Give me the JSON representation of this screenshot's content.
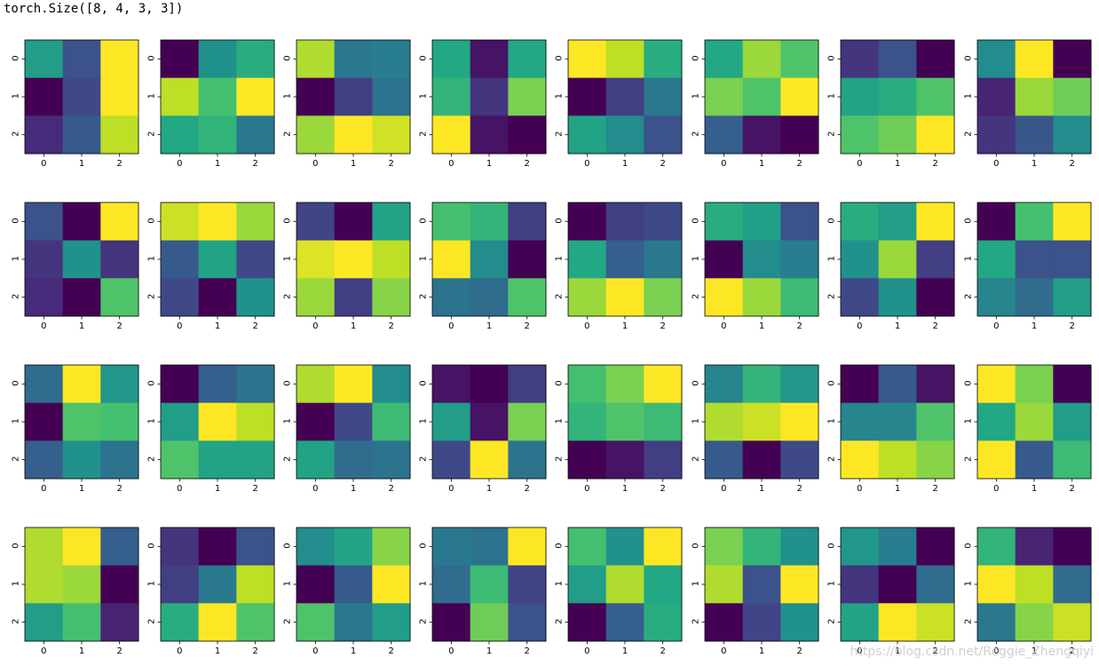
{
  "output_text": "torch.Size([8, 4, 3, 3])",
  "watermark": "https://blog.csdn.net/Reggie_Zhengqiyi",
  "chart_data": {
    "type": "heatmap",
    "colormap": "viridis",
    "grid_rows": 4,
    "grid_cols": 8,
    "value_range": [
      0,
      1
    ],
    "tick_labels": [
      "0",
      "1",
      "2"
    ],
    "panels": [
      [
        [
          0.55,
          0.25,
          1.0
        ],
        [
          0.0,
          0.22,
          1.0
        ],
        [
          0.12,
          0.28,
          0.9
        ]
      ],
      [
        [
          0.0,
          0.5,
          0.62
        ],
        [
          0.9,
          0.7,
          1.0
        ],
        [
          0.6,
          0.65,
          0.4
        ]
      ],
      [
        [
          0.88,
          0.4,
          0.42
        ],
        [
          0.0,
          0.18,
          0.38
        ],
        [
          0.85,
          1.0,
          0.93
        ]
      ],
      [
        [
          0.6,
          0.05,
          0.6
        ],
        [
          0.65,
          0.15,
          0.8
        ],
        [
          1.0,
          0.05,
          0.0
        ]
      ],
      [
        [
          1.0,
          0.9,
          0.62
        ],
        [
          0.0,
          0.18,
          0.4
        ],
        [
          0.58,
          0.48,
          0.25
        ]
      ],
      [
        [
          0.6,
          0.85,
          0.72
        ],
        [
          0.8,
          0.72,
          1.0
        ],
        [
          0.3,
          0.05,
          0.0
        ]
      ],
      [
        [
          0.15,
          0.25,
          0.0
        ],
        [
          0.58,
          0.62,
          0.72
        ],
        [
          0.72,
          0.78,
          1.0
        ]
      ],
      [
        [
          0.48,
          1.0,
          0.0
        ],
        [
          0.1,
          0.85,
          0.78
        ],
        [
          0.15,
          0.27,
          0.48
        ]
      ],
      [
        [
          0.25,
          0.0,
          1.0
        ],
        [
          0.15,
          0.5,
          0.15
        ],
        [
          0.12,
          0.0,
          0.72
        ]
      ],
      [
        [
          0.92,
          1.0,
          0.85
        ],
        [
          0.28,
          0.58,
          0.22
        ],
        [
          0.22,
          0.0,
          0.5
        ]
      ],
      [
        [
          0.2,
          0.0,
          0.58
        ],
        [
          0.95,
          1.0,
          0.9
        ],
        [
          0.85,
          0.18,
          0.82
        ]
      ],
      [
        [
          0.7,
          0.65,
          0.18
        ],
        [
          1.0,
          0.48,
          0.0
        ],
        [
          0.38,
          0.35,
          0.72
        ]
      ],
      [
        [
          0.0,
          0.18,
          0.22
        ],
        [
          0.6,
          0.3,
          0.4
        ],
        [
          0.85,
          1.0,
          0.8
        ]
      ],
      [
        [
          0.62,
          0.56,
          0.25
        ],
        [
          0.0,
          0.48,
          0.42
        ],
        [
          1.0,
          0.85,
          0.68
        ]
      ],
      [
        [
          0.62,
          0.55,
          1.0
        ],
        [
          0.5,
          0.85,
          0.18
        ],
        [
          0.22,
          0.5,
          0.0
        ]
      ],
      [
        [
          0.0,
          0.7,
          1.0
        ],
        [
          0.6,
          0.25,
          0.25
        ],
        [
          0.45,
          0.35,
          0.55
        ]
      ],
      [
        [
          0.35,
          1.0,
          0.52
        ],
        [
          0.0,
          0.72,
          0.7
        ],
        [
          0.3,
          0.5,
          0.38
        ]
      ],
      [
        [
          0.0,
          0.3,
          0.38
        ],
        [
          0.55,
          1.0,
          0.9
        ],
        [
          0.72,
          0.58,
          0.58
        ]
      ],
      [
        [
          0.88,
          1.0,
          0.48
        ],
        [
          0.0,
          0.22,
          0.68
        ],
        [
          0.58,
          0.35,
          0.38
        ]
      ],
      [
        [
          0.05,
          0.0,
          0.18
        ],
        [
          0.55,
          0.05,
          0.8
        ],
        [
          0.22,
          1.0,
          0.38
        ]
      ],
      [
        [
          0.7,
          0.8,
          1.0
        ],
        [
          0.65,
          0.72,
          0.68
        ],
        [
          0.0,
          0.05,
          0.18
        ]
      ],
      [
        [
          0.45,
          0.65,
          0.52
        ],
        [
          0.88,
          0.92,
          1.0
        ],
        [
          0.28,
          0.0,
          0.22
        ]
      ],
      [
        [
          0.0,
          0.28,
          0.05
        ],
        [
          0.45,
          0.45,
          0.72
        ],
        [
          1.0,
          0.9,
          0.82
        ]
      ],
      [
        [
          1.0,
          0.8,
          0.0
        ],
        [
          0.6,
          0.85,
          0.55
        ],
        [
          1.0,
          0.28,
          0.68
        ]
      ],
      [
        [
          0.88,
          1.0,
          0.3
        ],
        [
          0.88,
          0.85,
          0.0
        ],
        [
          0.55,
          0.7,
          0.1
        ]
      ],
      [
        [
          0.15,
          0.0,
          0.25
        ],
        [
          0.18,
          0.4,
          0.9
        ],
        [
          0.62,
          1.0,
          0.72
        ]
      ],
      [
        [
          0.48,
          0.58,
          0.82
        ],
        [
          0.0,
          0.28,
          1.0
        ],
        [
          0.72,
          0.4,
          0.55
        ]
      ],
      [
        [
          0.4,
          0.38,
          1.0
        ],
        [
          0.35,
          0.68,
          0.2
        ],
        [
          0.0,
          0.78,
          0.25
        ]
      ],
      [
        [
          0.7,
          0.5,
          1.0
        ],
        [
          0.55,
          0.88,
          0.6
        ],
        [
          0.0,
          0.3,
          0.62
        ]
      ],
      [
        [
          0.8,
          0.65,
          0.5
        ],
        [
          0.88,
          0.25,
          1.0
        ],
        [
          0.0,
          0.2,
          0.5
        ]
      ],
      [
        [
          0.52,
          0.42,
          0.0
        ],
        [
          0.15,
          0.0,
          0.35
        ],
        [
          0.58,
          1.0,
          0.92
        ]
      ],
      [
        [
          0.65,
          0.1,
          0.0
        ],
        [
          1.0,
          0.9,
          0.35
        ],
        [
          0.4,
          0.82,
          0.92
        ]
      ]
    ]
  }
}
